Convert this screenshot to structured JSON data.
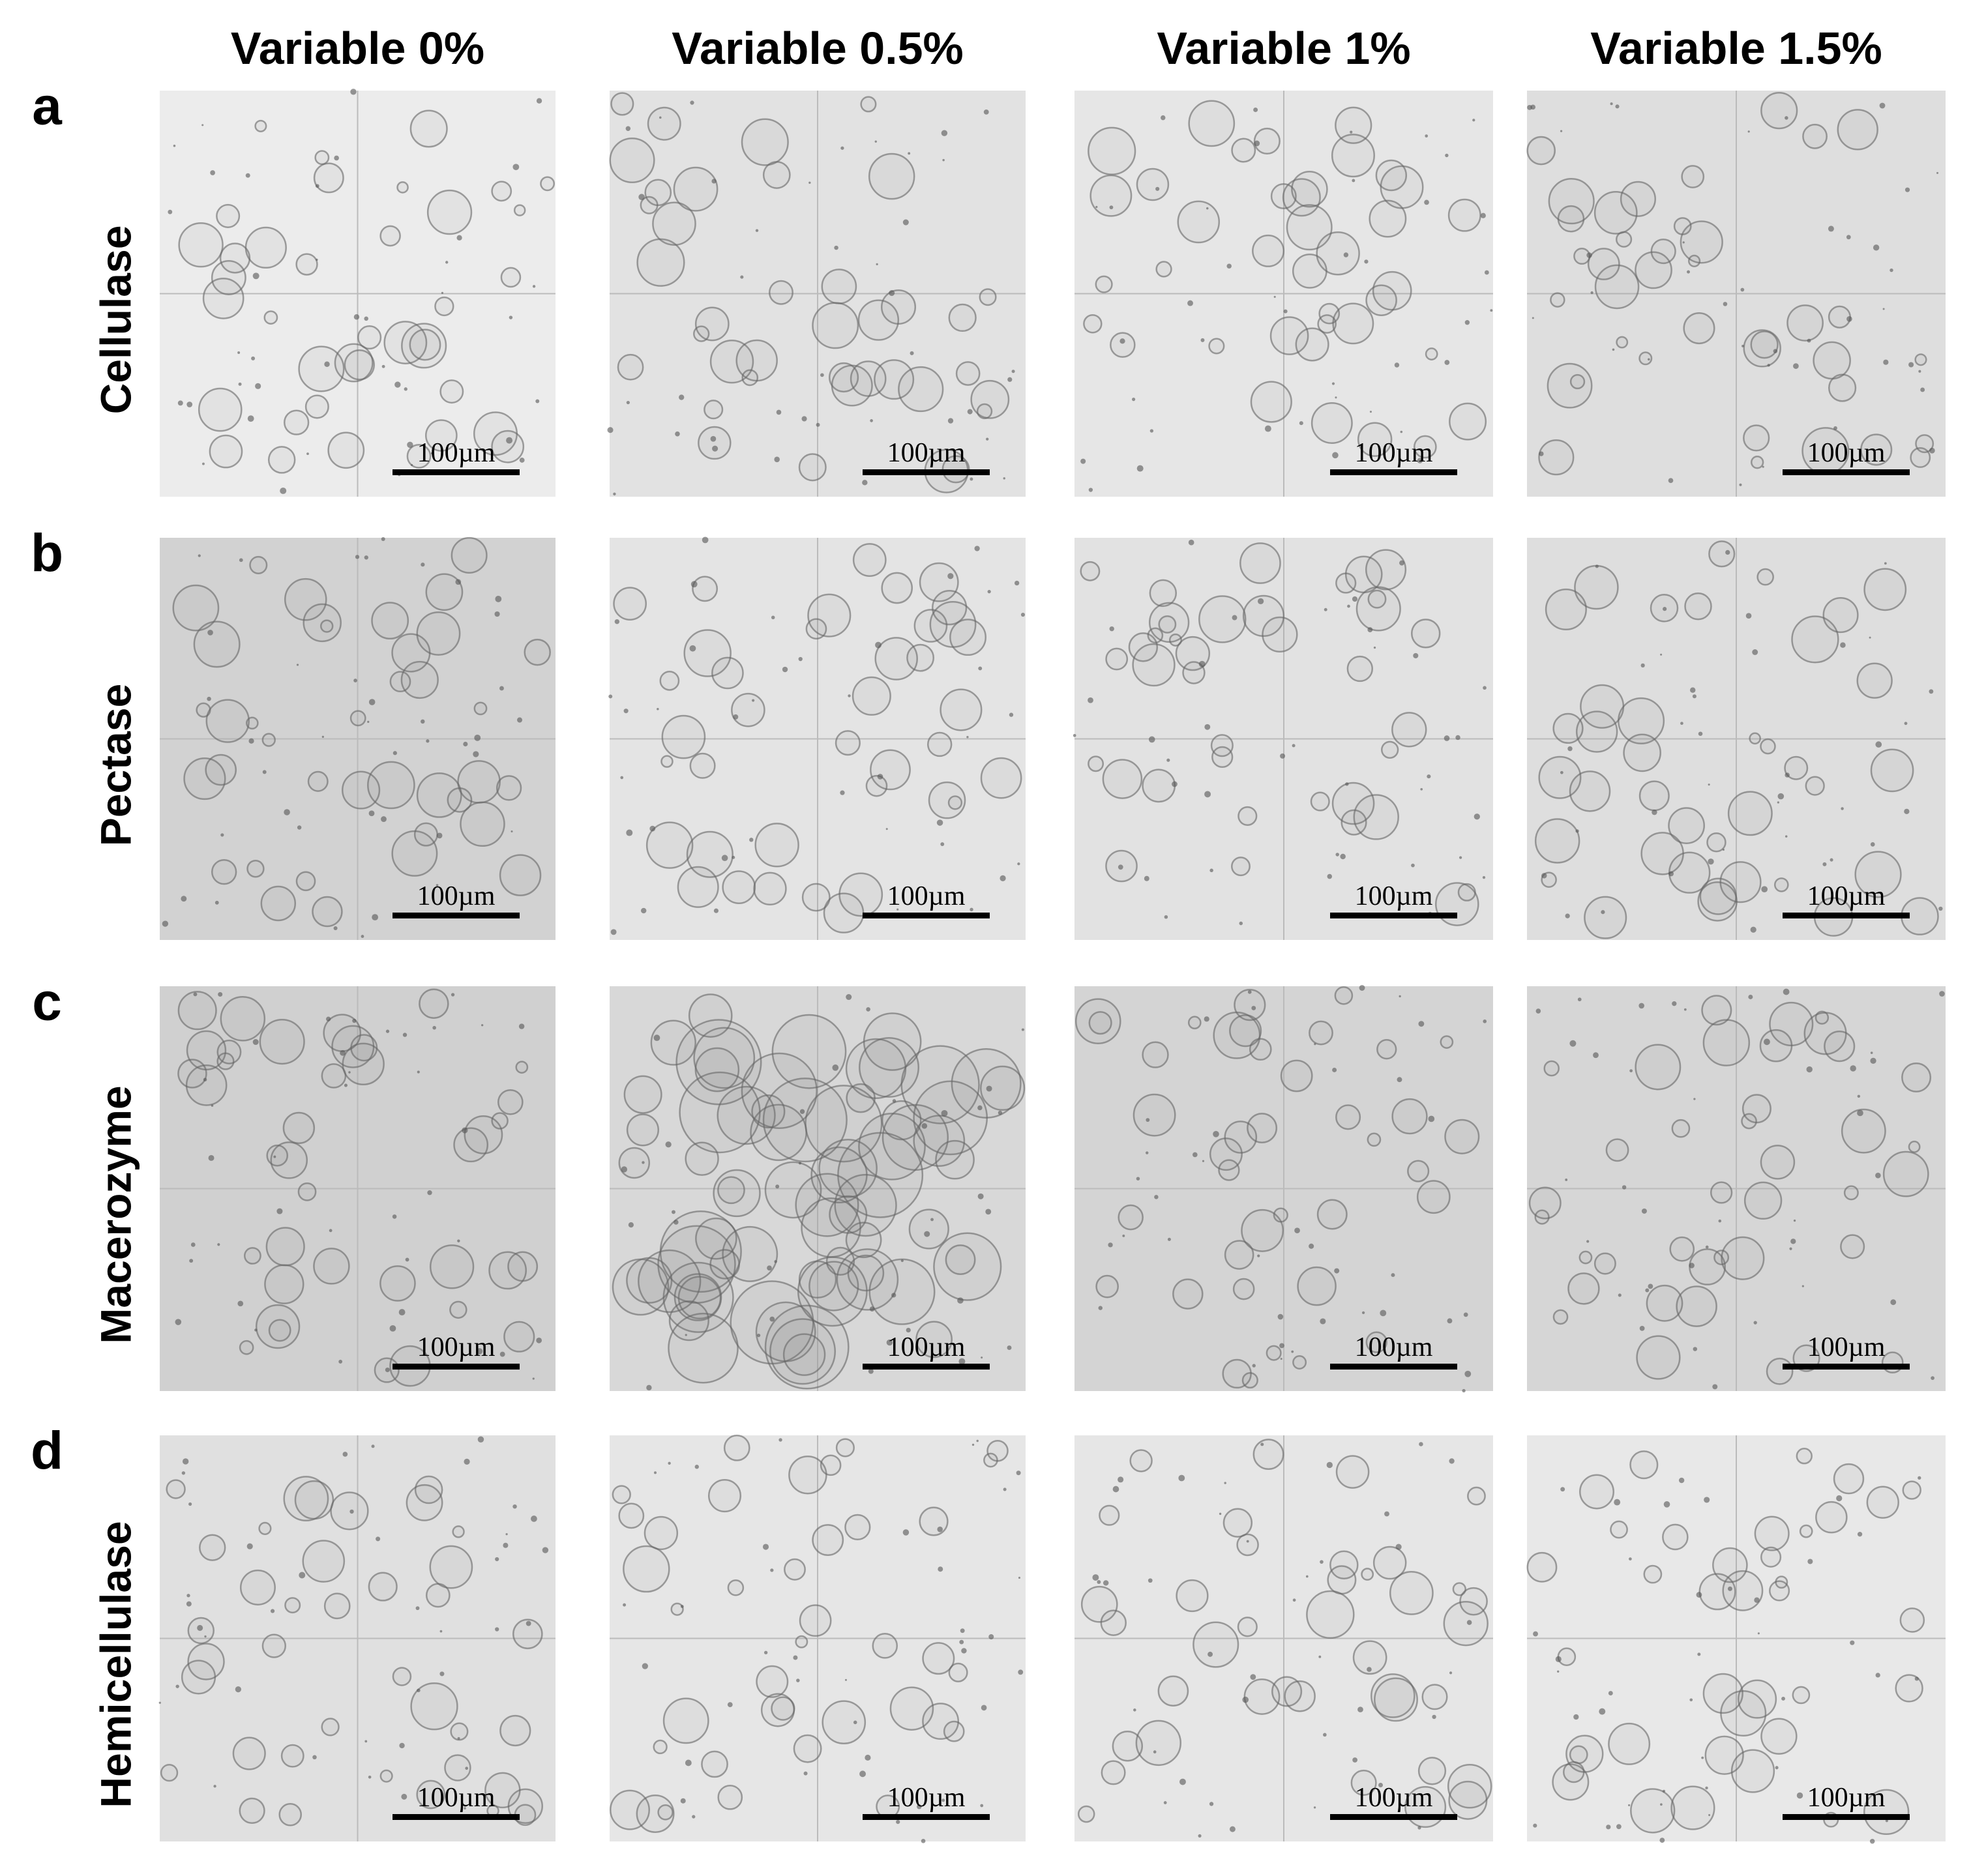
{
  "columns": [
    "Variable 0%",
    "Variable 0.5%",
    "Variable 1%",
    "Variable 1.5%"
  ],
  "rows": [
    {
      "letter": "a",
      "label": "Cellulase"
    },
    {
      "letter": "b",
      "label": "Pectase"
    },
    {
      "letter": "c",
      "label": "Macerozyme"
    },
    {
      "letter": "d",
      "label": "Hemicellulase"
    }
  ],
  "scale_bar_label": "100µm"
}
